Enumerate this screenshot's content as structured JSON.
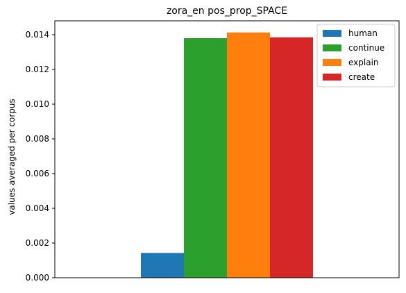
{
  "chart_data": {
    "type": "bar",
    "title": "zora_en pos_prop_SPACE",
    "xlabel": "",
    "ylabel": "values averaged per corpus",
    "categories": [
      ""
    ],
    "ylim": [
      0,
      0.0148
    ],
    "yticks": [
      "0.000",
      "0.002",
      "0.004",
      "0.006",
      "0.008",
      "0.010",
      "0.012",
      "0.014"
    ],
    "ytick_values": [
      0,
      0.002,
      0.004,
      0.006,
      0.008,
      0.01,
      0.012,
      0.014
    ],
    "grid": false,
    "legend_position": "top-right",
    "series": [
      {
        "name": "human",
        "values": [
          0.00143
        ],
        "color": "#1f77b4"
      },
      {
        "name": "continue",
        "values": [
          0.0138
        ],
        "color": "#2ca02c"
      },
      {
        "name": "explain",
        "values": [
          0.01413
        ],
        "color": "#ff7f0e"
      },
      {
        "name": "create",
        "values": [
          0.01385
        ],
        "color": "#d62728"
      }
    ]
  }
}
